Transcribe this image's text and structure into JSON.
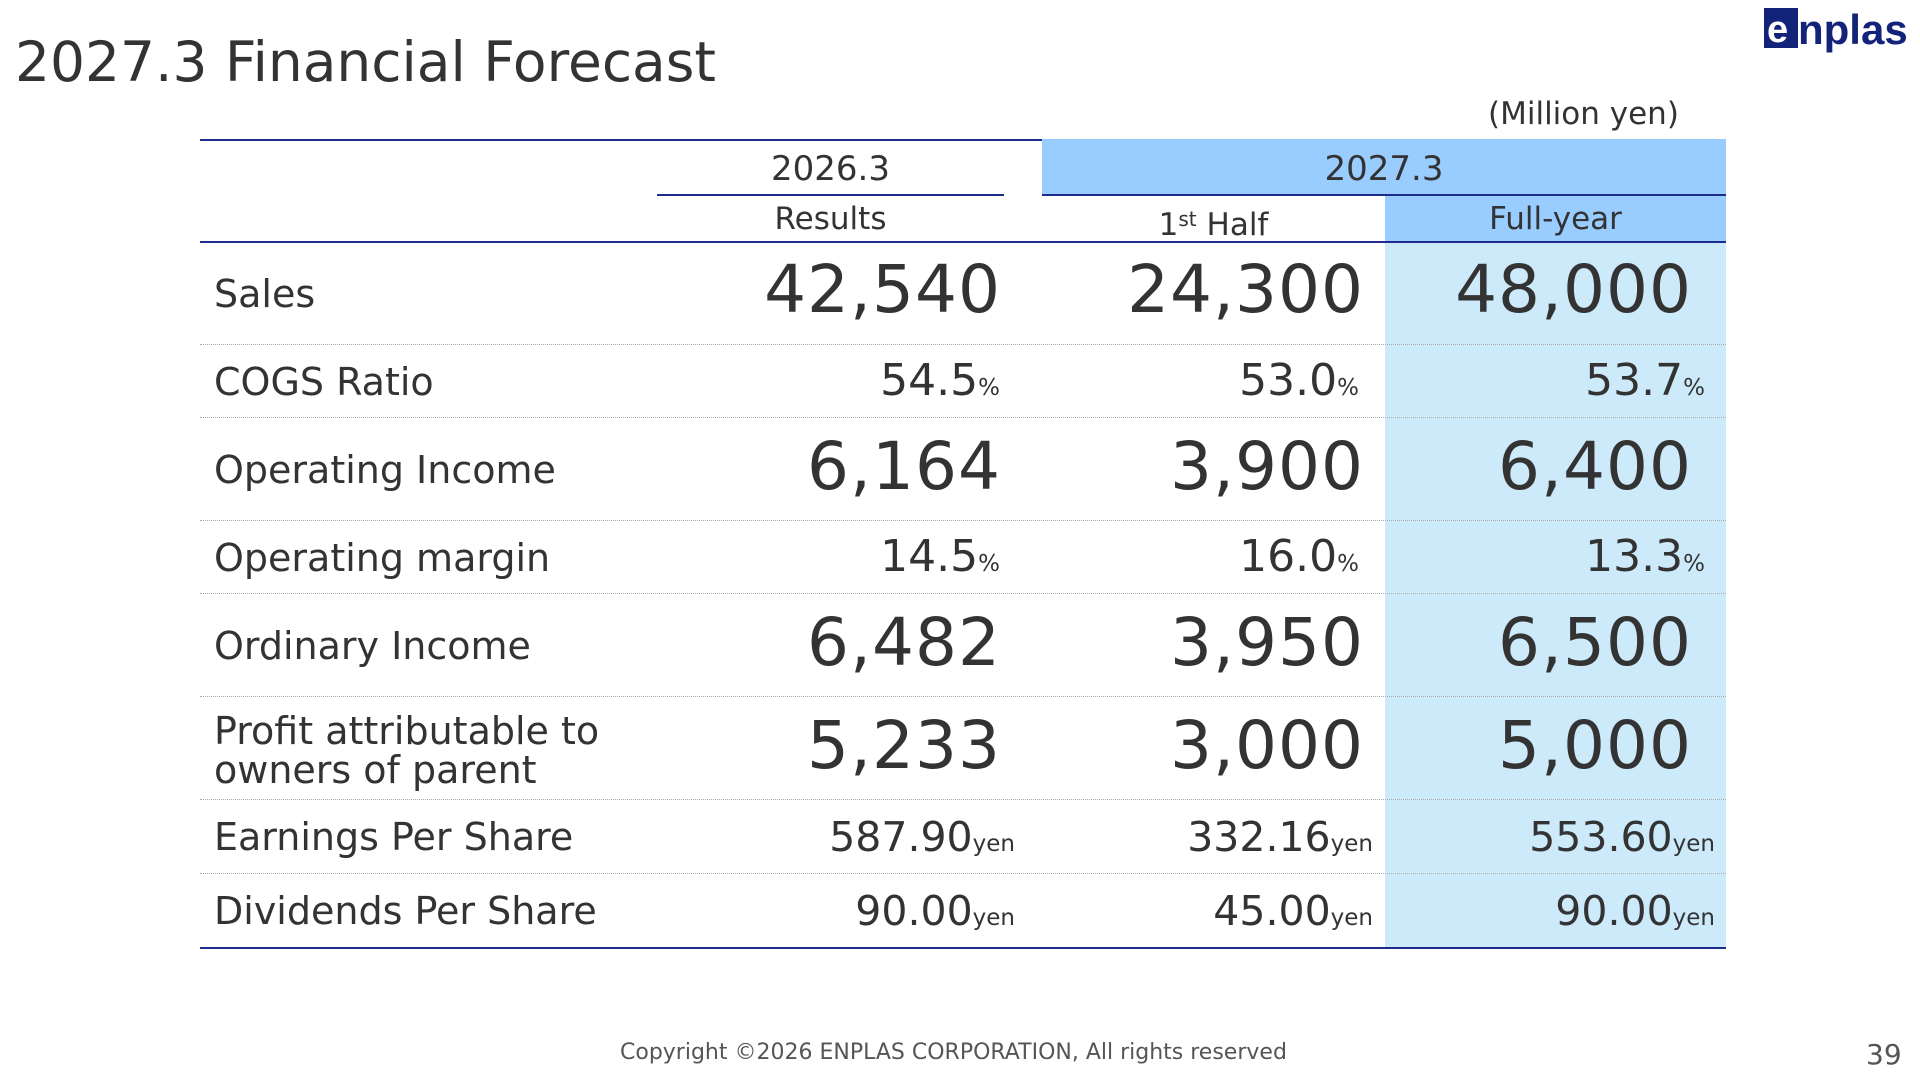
{
  "slide": {
    "title": "2027.3 Financial Forecast",
    "unit": "(Million yen)",
    "logo_text": "enplas",
    "footer": "Copyright ©2026 ENPLAS CORPORATION, All rights reserved",
    "page_number": "39"
  },
  "header": {
    "prev_year": "2026.3",
    "prev_sub": "Results",
    "next_year": "2027.3",
    "half_main": "1",
    "half_sup": "st",
    "half_rest": " Half",
    "full_year": "Full-year"
  },
  "rows": [
    {
      "label": "Sales",
      "results": "42,540",
      "first_half": "24,300",
      "full_year": "48,000",
      "suffix": ""
    },
    {
      "label": "COGS Ratio",
      "results": "54.5",
      "first_half": "53.0",
      "full_year": "53.7",
      "suffix": "%"
    },
    {
      "label": "Operating Income",
      "results": "6,164",
      "first_half": "3,900",
      "full_year": "6,400",
      "suffix": ""
    },
    {
      "label": "Operating margin",
      "results": "14.5",
      "first_half": "16.0",
      "full_year": "13.3",
      "suffix": "%"
    },
    {
      "label": "Ordinary Income",
      "results": "6,482",
      "first_half": "3,950",
      "full_year": "6,500",
      "suffix": ""
    },
    {
      "label_line1": "Profit attributable to",
      "label_line2": "owners of parent",
      "results": "5,233",
      "first_half": "3,000",
      "full_year": "5,000",
      "suffix": ""
    },
    {
      "label": "Earnings Per Share",
      "results": "587.90",
      "first_half": "332.16",
      "full_year": "553.60",
      "suffix": "yen"
    },
    {
      "label": "Dividends Per Share",
      "results": "90.00",
      "first_half": "45.00",
      "full_year": "90.00",
      "suffix": "yen"
    }
  ],
  "colors": {
    "header_blue": "#99ccff",
    "highlight_band": "#cdeafb",
    "rule_navy": "#1f2b8a",
    "logo_navy": "#14237a",
    "text": "#333333"
  }
}
